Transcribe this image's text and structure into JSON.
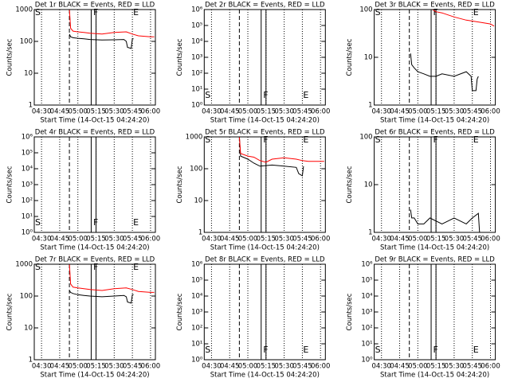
{
  "chart_data": [
    {
      "type": "line",
      "title": "Det 1r BLACK = Events, RED = LLD",
      "xlabel": "Start Time (14-Oct-15 04:24:20)",
      "ylabel": "Counts/sec",
      "xlim": [
        "04:24",
        "06:04"
      ],
      "xticks": [
        "04:30",
        "04:45",
        "05:00",
        "05:15",
        "05:30",
        "05:45",
        "06:00"
      ],
      "log_y": true,
      "ylim": [
        1,
        1000
      ],
      "yticks": [
        1,
        10,
        100,
        1000
      ],
      "dashed_x": "04:53",
      "band_x": [
        "05:11",
        "05:15"
      ],
      "markers": [
        {
          "label": "S",
          "x": "04:24"
        },
        {
          "label": "F",
          "x": "05:12"
        },
        {
          "label": "E",
          "x": "05:45"
        }
      ],
      "marker_position": "top",
      "series": [
        {
          "color": "#000000",
          "x": [
            "04:53",
            "04:54",
            "04:56",
            "05:00",
            "05:05",
            "05:10",
            "05:20",
            "05:30",
            "05:38",
            "05:40",
            "05:41",
            "05:44",
            "05:45",
            "05:46"
          ],
          "values": [
            170,
            140,
            130,
            125,
            120,
            115,
            110,
            112,
            115,
            100,
            65,
            60,
            120,
            120
          ]
        },
        {
          "color": "#ff0000",
          "x": [
            "04:53",
            "04:54",
            "04:56",
            "05:00",
            "05:05",
            "05:10",
            "05:20",
            "05:30",
            "05:40",
            "05:45",
            "05:50",
            "06:00",
            "06:03"
          ],
          "values": [
            1000,
            260,
            210,
            200,
            190,
            180,
            170,
            190,
            200,
            170,
            150,
            140,
            140
          ]
        }
      ]
    },
    {
      "type": "line",
      "title": "Det 2r BLACK = Events, RED = LLD",
      "xlabel": "Start Time (14-Oct-15 04:24:20)",
      "ylabel": "Counts/sec",
      "xlim": [
        "04:24",
        "06:04"
      ],
      "xticks": [
        "04:30",
        "04:45",
        "05:00",
        "05:15",
        "05:30",
        "05:45",
        "06:00"
      ],
      "log_y": true,
      "ylim": [
        1,
        1000000
      ],
      "yticks": [
        {
          "value": 1,
          "label": "10⁰"
        },
        {
          "value": 10,
          "label": "10¹"
        },
        {
          "value": 100,
          "label": "10²"
        },
        {
          "value": 1000,
          "label": "10³"
        },
        {
          "value": 10000,
          "label": "10⁴"
        },
        {
          "value": 100000,
          "label": "10⁵"
        },
        {
          "value": 1000000,
          "label": "10⁶"
        }
      ],
      "dashed_x": "04:53",
      "band_x": [
        "05:11",
        "05:15"
      ],
      "markers": [
        {
          "label": "S",
          "x": "04:24"
        },
        {
          "label": "F",
          "x": "05:12"
        },
        {
          "label": "E",
          "x": "05:45"
        }
      ],
      "marker_position": "bottom",
      "series": []
    },
    {
      "type": "line",
      "title": "Det 3r BLACK = Events, RED = LLD",
      "xlabel": "Start Time (14-Oct-15 04:24:20)",
      "ylabel": "Counts/sec",
      "xlim": [
        "04:24",
        "06:04"
      ],
      "xticks": [
        "04:30",
        "04:45",
        "05:00",
        "05:15",
        "05:30",
        "05:45",
        "06:00"
      ],
      "log_y": true,
      "ylim": [
        1,
        100
      ],
      "yticks": [
        1,
        10,
        100
      ],
      "dashed_x": "04:53",
      "band_x": [
        "05:11",
        "05:15"
      ],
      "markers": [
        {
          "label": "S",
          "x": "04:24"
        },
        {
          "label": "F",
          "x": "05:12"
        },
        {
          "label": "E",
          "x": "05:45"
        }
      ],
      "marker_position": "top",
      "series": [
        {
          "color": "#000000",
          "x": [
            "04:54",
            "04:55",
            "04:57",
            "05:00",
            "05:05",
            "05:10",
            "05:15",
            "05:20",
            "05:30",
            "05:40",
            "05:44",
            "05:45",
            "05:48",
            "05:49",
            "05:50"
          ],
          "values": [
            12,
            7,
            6,
            5,
            4.5,
            4,
            4,
            4.5,
            4,
            5,
            4,
            2,
            2,
            3.5,
            4
          ]
        },
        {
          "color": "#ff0000",
          "x": [
            "05:12",
            "05:15",
            "05:20",
            "05:30",
            "05:40",
            "05:50",
            "06:00",
            "06:03"
          ],
          "values": [
            100,
            90,
            85,
            70,
            60,
            55,
            50,
            45
          ]
        }
      ]
    },
    {
      "type": "line",
      "title": "Det 4r BLACK = Events, RED = LLD",
      "xlabel": "Start Time (14-Oct-15 04:24:20)",
      "ylabel": "Counts/sec",
      "xlim": [
        "04:24",
        "06:04"
      ],
      "xticks": [
        "04:30",
        "04:45",
        "05:00",
        "05:15",
        "05:30",
        "05:45",
        "06:00"
      ],
      "log_y": true,
      "ylim": [
        1,
        1000000
      ],
      "yticks": [
        {
          "value": 1,
          "label": "10⁰"
        },
        {
          "value": 10,
          "label": "10¹"
        },
        {
          "value": 100,
          "label": "10²"
        },
        {
          "value": 1000,
          "label": "10³"
        },
        {
          "value": 10000,
          "label": "10⁴"
        },
        {
          "value": 100000,
          "label": "10⁵"
        },
        {
          "value": 1000000,
          "label": "10⁶"
        }
      ],
      "dashed_x": "04:53",
      "band_x": [
        "05:11",
        "05:15"
      ],
      "markers": [
        {
          "label": "S",
          "x": "04:24"
        },
        {
          "label": "F",
          "x": "05:12"
        },
        {
          "label": "E",
          "x": "05:45"
        }
      ],
      "marker_position": "bottom",
      "series": []
    },
    {
      "type": "line",
      "title": "Det 5r BLACK = Events, RED = LLD",
      "xlabel": "Start Time (14-Oct-15 04:24:20)",
      "ylabel": "Counts/sec",
      "xlim": [
        "04:24",
        "06:04"
      ],
      "xticks": [
        "04:30",
        "04:45",
        "05:00",
        "05:15",
        "05:30",
        "05:45",
        "06:00"
      ],
      "log_y": true,
      "ylim": [
        1,
        1000
      ],
      "yticks": [
        1,
        10,
        100,
        1000
      ],
      "dashed_x": "04:53",
      "band_x": [
        "05:11",
        "05:15"
      ],
      "markers": [
        {
          "label": "S",
          "x": "04:24"
        },
        {
          "label": "F",
          "x": "05:12"
        },
        {
          "label": "E",
          "x": "05:45"
        }
      ],
      "marker_position": "top",
      "series": [
        {
          "color": "#000000",
          "x": [
            "04:53",
            "04:54",
            "05:00",
            "05:05",
            "05:10",
            "05:20",
            "05:30",
            "05:40",
            "05:42",
            "05:45",
            "05:46"
          ],
          "values": [
            1000,
            250,
            200,
            150,
            120,
            130,
            120,
            110,
            70,
            60,
            120
          ]
        },
        {
          "color": "#ff0000",
          "x": [
            "04:53",
            "04:54",
            "05:00",
            "05:05",
            "05:10",
            "05:15",
            "05:20",
            "05:30",
            "05:40",
            "05:45",
            "05:50",
            "06:00",
            "06:03"
          ],
          "values": [
            1000,
            300,
            250,
            230,
            180,
            160,
            200,
            220,
            200,
            180,
            170,
            170,
            170
          ]
        }
      ]
    },
    {
      "type": "line",
      "title": "Det 6r BLACK = Events, RED = LLD",
      "xlabel": "Start Time (14-Oct-15 04:24:20)",
      "ylabel": "Counts/sec",
      "xlim": [
        "04:24",
        "06:04"
      ],
      "xticks": [
        "04:30",
        "04:45",
        "05:00",
        "05:15",
        "05:30",
        "05:45",
        "06:00"
      ],
      "log_y": true,
      "ylim": [
        1,
        100
      ],
      "yticks": [
        1,
        10,
        100
      ],
      "dashed_x": "04:53",
      "band_x": [
        "05:11",
        "05:15"
      ],
      "markers": [
        {
          "label": "S",
          "x": "04:24"
        },
        {
          "label": "F",
          "x": "05:12"
        },
        {
          "label": "E",
          "x": "05:45"
        }
      ],
      "marker_position": "top",
      "series": [
        {
          "color": "#000000",
          "x": [
            "04:54",
            "04:55",
            "04:57",
            "05:00",
            "05:05",
            "05:10",
            "05:20",
            "05:30",
            "05:40",
            "05:45",
            "05:50",
            "05:51"
          ],
          "values": [
            3,
            2,
            2,
            1.5,
            1.5,
            2,
            1.5,
            2,
            1.5,
            2,
            2.5,
            1
          ]
        }
      ]
    },
    {
      "type": "line",
      "title": "Det 7r BLACK = Events, RED = LLD",
      "xlabel": "Start Time (14-Oct-15 04:24:20)",
      "ylabel": "Counts/sec",
      "xlim": [
        "04:24",
        "06:04"
      ],
      "xticks": [
        "04:30",
        "04:45",
        "05:00",
        "05:15",
        "05:30",
        "05:45",
        "06:00"
      ],
      "log_y": true,
      "ylim": [
        1,
        1000
      ],
      "yticks": [
        1,
        10,
        100,
        1000
      ],
      "dashed_x": "04:53",
      "band_x": [
        "05:11",
        "05:15"
      ],
      "markers": [
        {
          "label": "S",
          "x": "04:24"
        },
        {
          "label": "F",
          "x": "05:12"
        },
        {
          "label": "E",
          "x": "05:45"
        }
      ],
      "marker_position": "top",
      "series": [
        {
          "color": "#000000",
          "x": [
            "04:53",
            "04:54",
            "04:56",
            "05:00",
            "05:05",
            "05:10",
            "05:20",
            "05:30",
            "05:38",
            "05:40",
            "05:41",
            "05:44",
            "05:45",
            "05:46"
          ],
          "values": [
            150,
            130,
            120,
            110,
            105,
            100,
            95,
            100,
            105,
            95,
            65,
            60,
            110,
            110
          ]
        },
        {
          "color": "#ff0000",
          "x": [
            "04:53",
            "04:54",
            "04:56",
            "05:00",
            "05:05",
            "05:10",
            "05:20",
            "05:30",
            "05:40",
            "05:45",
            "05:50",
            "06:00",
            "06:03"
          ],
          "values": [
            1000,
            240,
            190,
            180,
            170,
            160,
            150,
            170,
            180,
            160,
            140,
            130,
            130
          ]
        }
      ]
    },
    {
      "type": "line",
      "title": "Det 8r BLACK = Events, RED = LLD",
      "xlabel": "Start Time (14-Oct-15 04:24:20)",
      "ylabel": "Counts/sec",
      "xlim": [
        "04:24",
        "06:04"
      ],
      "xticks": [
        "04:30",
        "04:45",
        "05:00",
        "05:15",
        "05:30",
        "05:45",
        "06:00"
      ],
      "log_y": true,
      "ylim": [
        1,
        1000000
      ],
      "yticks": [
        {
          "value": 1,
          "label": "10⁰"
        },
        {
          "value": 10,
          "label": "10¹"
        },
        {
          "value": 100,
          "label": "10²"
        },
        {
          "value": 1000,
          "label": "10³"
        },
        {
          "value": 10000,
          "label": "10⁴"
        },
        {
          "value": 100000,
          "label": "10⁵"
        },
        {
          "value": 1000000,
          "label": "10⁶"
        }
      ],
      "dashed_x": "04:53",
      "band_x": [
        "05:11",
        "05:15"
      ],
      "markers": [
        {
          "label": "S",
          "x": "04:24"
        },
        {
          "label": "F",
          "x": "05:12"
        },
        {
          "label": "E",
          "x": "05:45"
        }
      ],
      "marker_position": "bottom",
      "series": []
    },
    {
      "type": "line",
      "title": "Det 9r BLACK = Events, RED = LLD",
      "xlabel": "Start Time (14-Oct-15 04:24:20)",
      "ylabel": "Counts/sec",
      "xlim": [
        "04:24",
        "06:04"
      ],
      "xticks": [
        "04:30",
        "04:45",
        "05:00",
        "05:15",
        "05:30",
        "05:45",
        "06:00"
      ],
      "log_y": true,
      "ylim": [
        1,
        1000000
      ],
      "yticks": [
        {
          "value": 1,
          "label": "10⁰"
        },
        {
          "value": 10,
          "label": "10¹"
        },
        {
          "value": 100,
          "label": "10²"
        },
        {
          "value": 1000,
          "label": "10³"
        },
        {
          "value": 10000,
          "label": "10⁴"
        },
        {
          "value": 100000,
          "label": "10⁵"
        },
        {
          "value": 1000000,
          "label": "10⁶"
        }
      ],
      "dashed_x": "04:53",
      "band_x": [
        "05:11",
        "05:15"
      ],
      "markers": [
        {
          "label": "S",
          "x": "04:24"
        },
        {
          "label": "F",
          "x": "05:12"
        },
        {
          "label": "E",
          "x": "05:45"
        }
      ],
      "marker_position": "bottom",
      "series": []
    }
  ]
}
